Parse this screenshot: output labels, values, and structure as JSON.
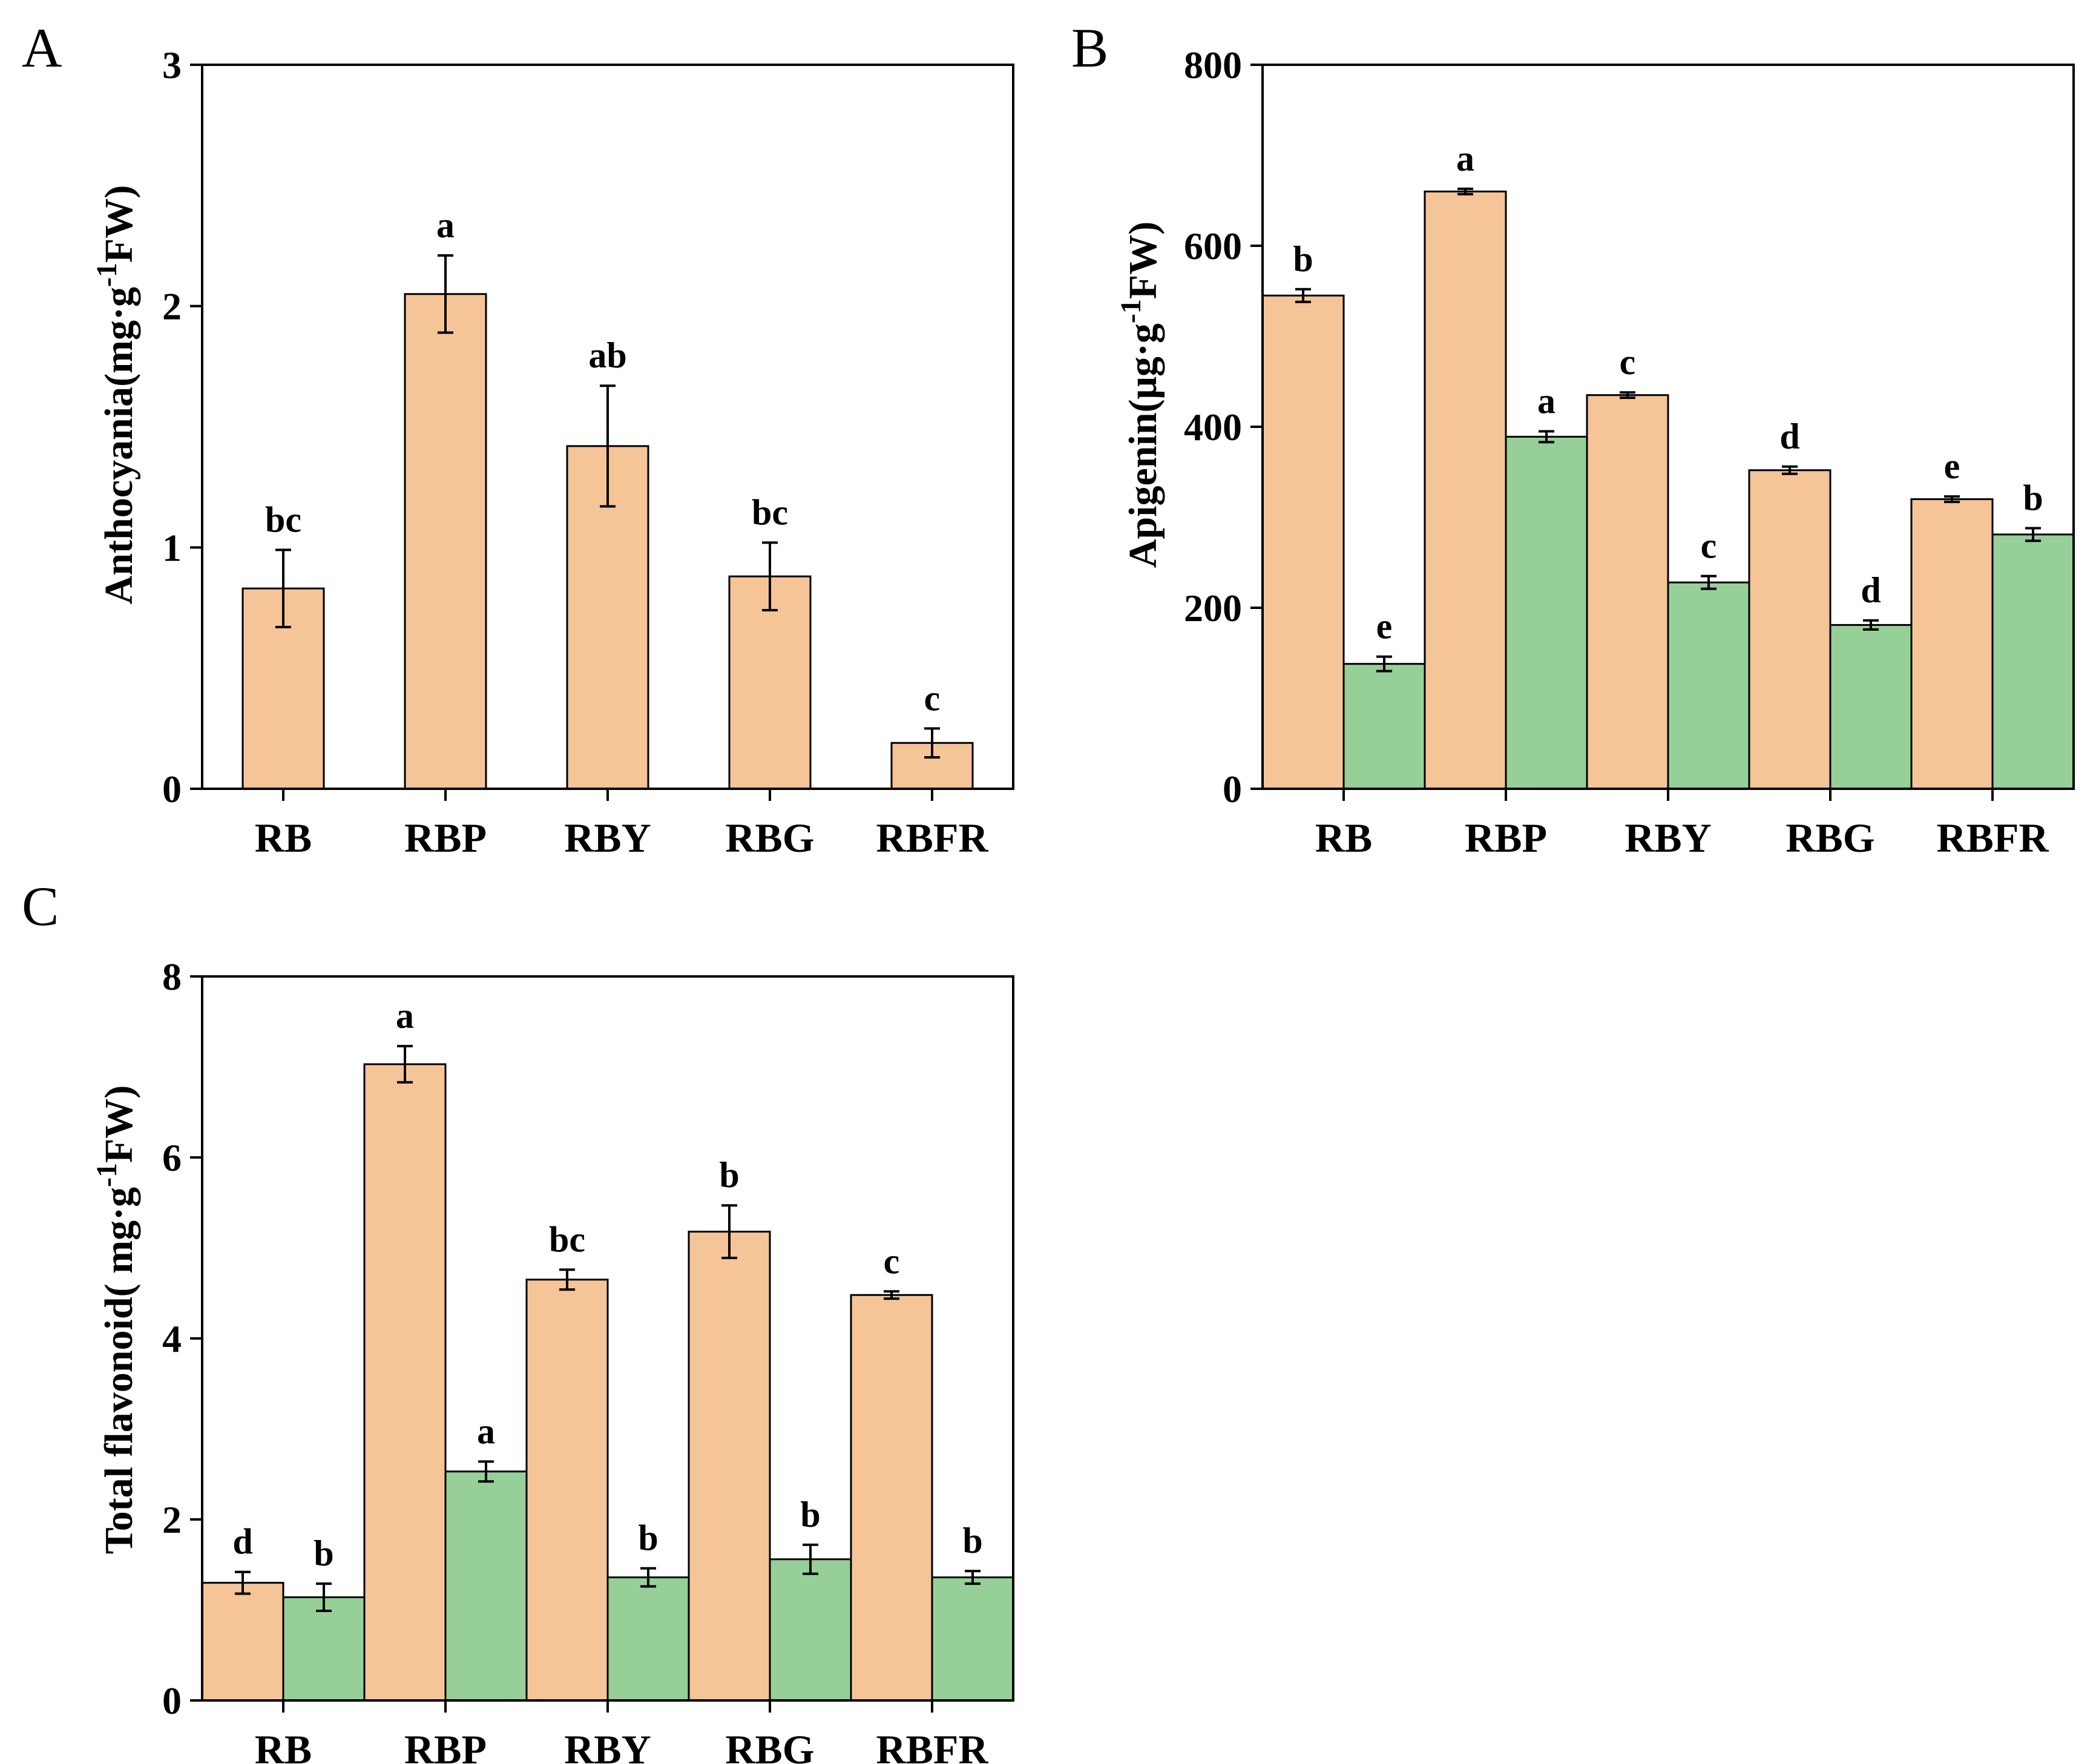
{
  "colors": {
    "series1": "#f5c497",
    "series2": "#96cf98"
  },
  "chart_data": [
    {
      "panel": "A",
      "type": "bar",
      "categories": [
        "RB",
        "RBP",
        "RBY",
        "RBG",
        "RBFR"
      ],
      "ylabel": {
        "main": "Anthocyania(mg·g",
        "sup": "-1",
        "tail": "FW)"
      },
      "ylim": [
        0,
        3
      ],
      "yticks": [
        0,
        1,
        2,
        3
      ],
      "series": [
        {
          "name": "series1",
          "values": [
            0.83,
            2.05,
            1.42,
            0.88,
            0.19
          ],
          "errors": [
            0.16,
            0.16,
            0.25,
            0.14,
            0.06
          ],
          "letters": [
            "bc",
            "a",
            "ab",
            "bc",
            "c"
          ]
        }
      ]
    },
    {
      "panel": "B",
      "type": "bar",
      "categories": [
        "RB",
        "RBP",
        "RBY",
        "RBG",
        "RBFR"
      ],
      "ylabel": {
        "main": "Apigenin(μg·g",
        "sup": "-1",
        "tail": "FW)"
      },
      "ylim": [
        0,
        800
      ],
      "yticks": [
        0,
        200,
        400,
        600,
        800
      ],
      "series": [
        {
          "name": "series1",
          "values": [
            545,
            660,
            435,
            352,
            320
          ],
          "errors": [
            7,
            3,
            3,
            4,
            3
          ],
          "letters": [
            "b",
            "a",
            "c",
            "d",
            "e"
          ]
        },
        {
          "name": "series2",
          "values": [
            138,
            389,
            228,
            181,
            281
          ],
          "errors": [
            8,
            6,
            7,
            5,
            7
          ],
          "letters": [
            "e",
            "a",
            "c",
            "d",
            "b"
          ]
        }
      ]
    },
    {
      "panel": "C",
      "type": "bar",
      "categories": [
        "RB",
        "RBP",
        "RBY",
        "RBG",
        "RBFR"
      ],
      "ylabel": {
        "main": "Total flavonoid( mg·g",
        "sup": "-1",
        "tail": "FW)"
      },
      "ylim": [
        0,
        8
      ],
      "yticks": [
        0,
        2,
        4,
        6,
        8
      ],
      "series": [
        {
          "name": "series1",
          "values": [
            1.3,
            7.03,
            4.65,
            5.18,
            4.48
          ],
          "errors": [
            0.12,
            0.2,
            0.11,
            0.29,
            0.04
          ],
          "letters": [
            "d",
            "a",
            "bc",
            "b",
            "c"
          ]
        },
        {
          "name": "series2",
          "values": [
            1.14,
            2.53,
            1.36,
            1.56,
            1.36
          ],
          "errors": [
            0.15,
            0.11,
            0.1,
            0.16,
            0.07
          ],
          "letters": [
            "b",
            "a",
            "b",
            "b",
            "b"
          ]
        }
      ]
    }
  ]
}
